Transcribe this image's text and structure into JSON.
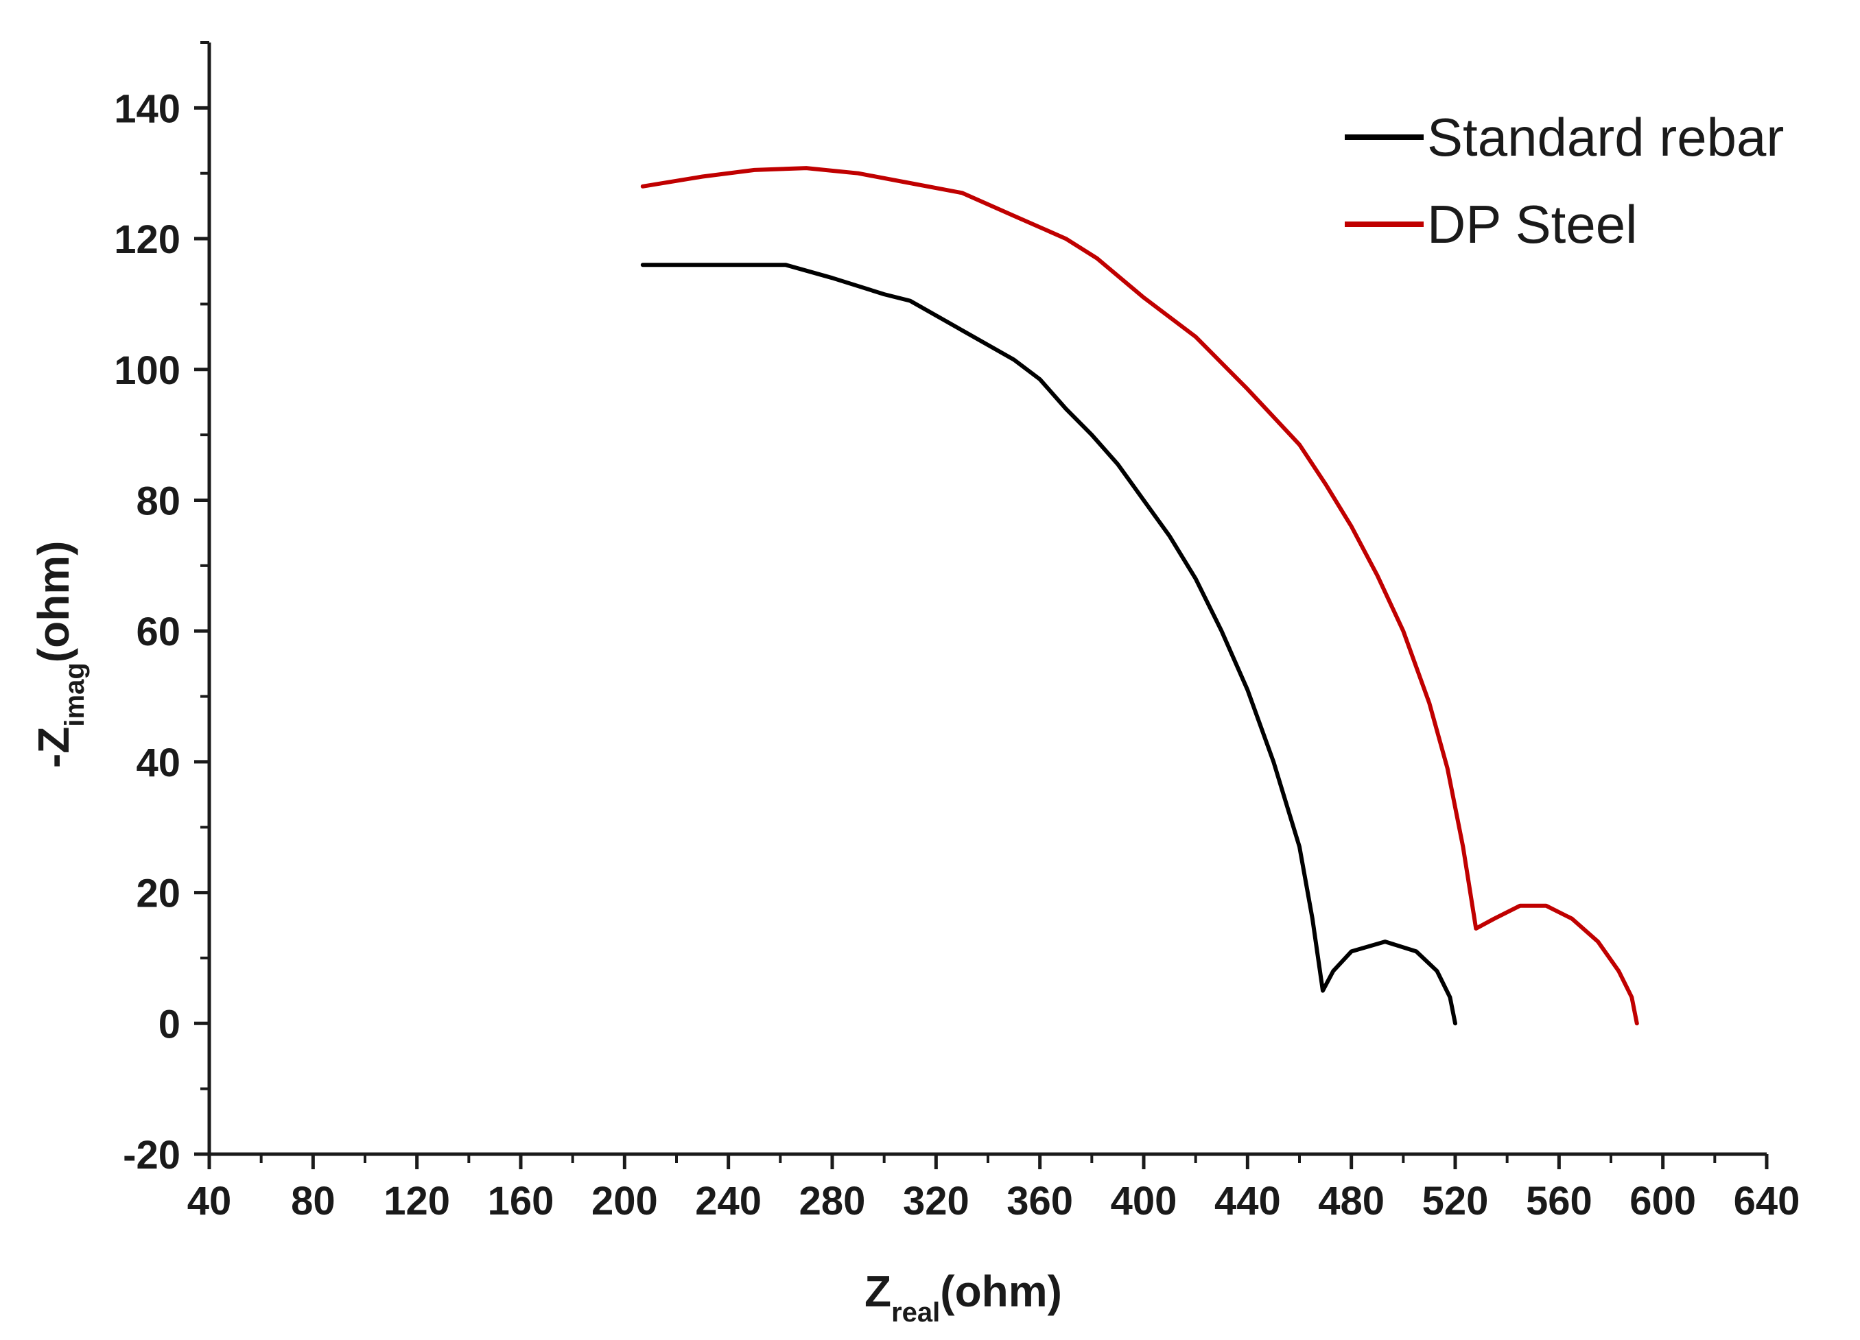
{
  "chart_data": {
    "type": "line",
    "title": "",
    "xlabel": {
      "main": "Z",
      "sub": "real",
      "unit": "(ohm)"
    },
    "ylabel": {
      "main": "-Z",
      "sub": "imag",
      "unit": "(ohm)"
    },
    "xlim": [
      40,
      640
    ],
    "ylim": [
      -20,
      150
    ],
    "x_ticks": [
      40,
      80,
      120,
      160,
      200,
      240,
      280,
      320,
      360,
      400,
      440,
      480,
      520,
      560,
      600,
      640
    ],
    "y_ticks": [
      -20,
      0,
      20,
      40,
      60,
      80,
      100,
      120,
      140
    ],
    "grid": false,
    "legend_position": "top-right",
    "series": [
      {
        "name": "Standard rebar",
        "color": "#000000",
        "points": [
          [
            207,
            116
          ],
          [
            240,
            116
          ],
          [
            262,
            116
          ],
          [
            280,
            114
          ],
          [
            300,
            111.5
          ],
          [
            310,
            110.5
          ],
          [
            330,
            106
          ],
          [
            350,
            101.5
          ],
          [
            360,
            98.5
          ],
          [
            370,
            94
          ],
          [
            380,
            90
          ],
          [
            390,
            85.5
          ],
          [
            400,
            80
          ],
          [
            410,
            74.5
          ],
          [
            420,
            68
          ],
          [
            430,
            60
          ],
          [
            440,
            51
          ],
          [
            450,
            40
          ],
          [
            460,
            27
          ],
          [
            465,
            16
          ],
          [
            469,
            5
          ],
          [
            473,
            8
          ],
          [
            480,
            11
          ],
          [
            493,
            12.5
          ],
          [
            505,
            11
          ],
          [
            513,
            8
          ],
          [
            518,
            4
          ],
          [
            520,
            0
          ]
        ]
      },
      {
        "name": "DP Steel",
        "color": "#c00000",
        "points": [
          [
            207,
            128
          ],
          [
            230,
            129.5
          ],
          [
            250,
            130.5
          ],
          [
            270,
            130.8
          ],
          [
            290,
            130
          ],
          [
            310,
            128.5
          ],
          [
            330,
            127
          ],
          [
            350,
            123.5
          ],
          [
            370,
            120
          ],
          [
            382,
            117
          ],
          [
            400,
            111
          ],
          [
            420,
            105
          ],
          [
            440,
            97
          ],
          [
            460,
            88.5
          ],
          [
            470,
            82.5
          ],
          [
            480,
            76
          ],
          [
            490,
            68.5
          ],
          [
            500,
            60
          ],
          [
            510,
            49
          ],
          [
            517,
            39
          ],
          [
            523,
            27
          ],
          [
            528,
            14.5
          ],
          [
            535,
            16
          ],
          [
            545,
            18
          ],
          [
            555,
            18
          ],
          [
            565,
            16
          ],
          [
            575,
            12.5
          ],
          [
            583,
            8
          ],
          [
            588,
            4
          ],
          [
            590,
            0
          ]
        ]
      }
    ]
  }
}
